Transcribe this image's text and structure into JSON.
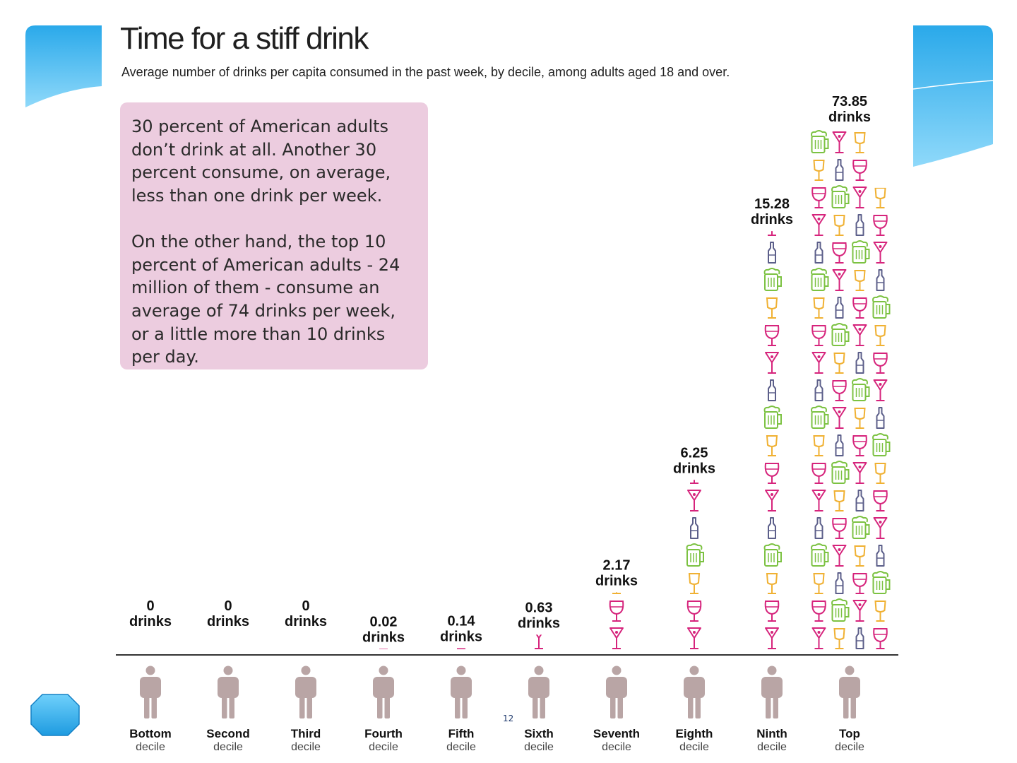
{
  "title": "Time for a stiff drink",
  "subtitle": "Average number of drinks per capita consumed in the past week, by decile, among adults aged 18 and over.",
  "note": {
    "paragraph1": "30 percent of American adults don’t drink at all. Another 30 percent consume, on average, less than one drink per week.",
    "paragraph2": "On the other hand, the top 10 percent of American adults - 24 million of them - consume an average of 74 drinks per week, or a little more than 10 drinks per day."
  },
  "page_number": "12",
  "colors": {
    "wine": "#d6247c",
    "beer": "#7cc242",
    "bottle": "#5c5f8a",
    "shot": "#f0b133",
    "martini": "#d6247c",
    "person": "#b9a5a5",
    "note_bg": "#ecccdf",
    "accent": "#3fb6ee"
  },
  "chart_data": {
    "type": "bar",
    "title": "Time for a stiff drink",
    "subtitle": "Average number of drinks per capita consumed in the past week, by decile, among adults aged 18 and over.",
    "categories": [
      {
        "name": "Bottom",
        "sub": "decile"
      },
      {
        "name": "Second",
        "sub": "decile"
      },
      {
        "name": "Third",
        "sub": "decile"
      },
      {
        "name": "Fourth",
        "sub": "decile"
      },
      {
        "name": "Fifth",
        "sub": "decile"
      },
      {
        "name": "Sixth",
        "sub": "decile"
      },
      {
        "name": "Seventh",
        "sub": "decile"
      },
      {
        "name": "Eighth",
        "sub": "decile"
      },
      {
        "name": "Ninth",
        "sub": "decile"
      },
      {
        "name": "Top",
        "sub": "decile"
      }
    ],
    "values": [
      0,
      0,
      0,
      0.02,
      0.14,
      0.63,
      2.17,
      6.25,
      15.28,
      73.85
    ],
    "value_labels": [
      {
        "number": "0",
        "unit": "drinks"
      },
      {
        "number": "0",
        "unit": "drinks"
      },
      {
        "number": "0",
        "unit": "drinks"
      },
      {
        "number": "0.02",
        "unit": "drinks"
      },
      {
        "number": "0.14",
        "unit": "drinks"
      },
      {
        "number": "0.63",
        "unit": "drinks"
      },
      {
        "number": "2.17",
        "unit": "drinks"
      },
      {
        "number": "6.25",
        "unit": "drinks"
      },
      {
        "number": "15.28",
        "unit": "drinks"
      },
      {
        "number": "73.85",
        "unit": "drinks"
      }
    ],
    "icon_cycle": [
      "martini",
      "wine",
      "shot",
      "beer",
      "bottle"
    ],
    "icons": [
      "martini-glass",
      "wine-glass",
      "shot-glass",
      "beer-mug",
      "bottle",
      "person"
    ],
    "grid": false,
    "legend": "none"
  }
}
